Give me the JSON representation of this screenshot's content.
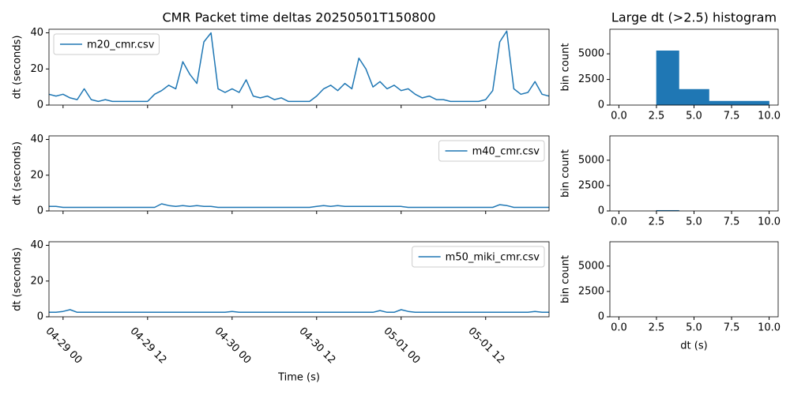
{
  "chart_data": [
    {
      "type": "line",
      "title": "CMR Packet time deltas 20250501T150800",
      "ylabel": "dt (seconds)",
      "legend": "upper left",
      "xticklabels": false,
      "x": [
        "04-28 22",
        "04-28 23",
        "04-29 00",
        "04-29 01",
        "04-29 02",
        "04-29 03",
        "04-29 04",
        "04-29 05",
        "04-29 06",
        "04-29 07",
        "04-29 08",
        "04-29 09",
        "04-29 10",
        "04-29 11",
        "04-29 12",
        "04-29 13",
        "04-29 14",
        "04-29 15",
        "04-29 16",
        "04-29 17",
        "04-29 18",
        "04-29 19",
        "04-29 20",
        "04-29 21",
        "04-29 22",
        "04-29 23",
        "04-30 00",
        "04-30 01",
        "04-30 02",
        "04-30 03",
        "04-30 04",
        "04-30 05",
        "04-30 06",
        "04-30 07",
        "04-30 08",
        "04-30 09",
        "04-30 10",
        "04-30 11",
        "04-30 12",
        "04-30 13",
        "04-30 14",
        "04-30 15",
        "04-30 16",
        "04-30 17",
        "04-30 18",
        "04-30 19",
        "04-30 20",
        "04-30 21",
        "04-30 22",
        "04-30 23",
        "05-01 00",
        "05-01 01",
        "05-01 02",
        "05-01 03",
        "05-01 04",
        "05-01 05",
        "05-01 06",
        "05-01 07",
        "05-01 08",
        "05-01 09",
        "05-01 10",
        "05-01 11",
        "05-01 12",
        "05-01 13",
        "05-01 14",
        "05-01 15",
        "05-01 16",
        "05-01 17",
        "05-01 18",
        "05-01 19",
        "05-01 20",
        "05-01 21"
      ],
      "series": [
        {
          "name": "m20_cmr.csv",
          "color": "#1f77b4",
          "values": [
            6,
            5,
            6,
            4,
            3,
            9,
            3,
            2,
            3,
            2,
            2,
            2,
            2,
            2,
            2,
            6,
            8,
            11,
            9,
            24,
            17,
            12,
            35,
            40,
            9,
            7,
            9,
            7,
            14,
            5,
            4,
            5,
            3,
            4,
            2,
            2,
            2,
            2,
            5,
            9,
            11,
            8,
            12,
            9,
            26,
            20,
            10,
            13,
            9,
            11,
            8,
            9,
            6,
            4,
            5,
            3,
            3,
            2,
            2,
            2,
            2,
            2,
            3,
            8,
            35,
            41,
            9,
            6,
            7,
            13,
            6,
            5
          ]
        }
      ],
      "xlim": [
        "04-28 22",
        "05-01 21"
      ],
      "xticks": [
        "04-29 00",
        "04-29 12",
        "04-30 00",
        "04-30 12",
        "05-01 00",
        "05-01 12"
      ],
      "ylim": [
        0,
        42
      ],
      "yticks": [
        0,
        20,
        40
      ]
    },
    {
      "type": "line",
      "ylabel": "dt (seconds)",
      "legend": "upper right",
      "xticklabels": false,
      "x": [
        "04-28 22",
        "04-28 23",
        "04-29 00",
        "04-29 01",
        "04-29 02",
        "04-29 03",
        "04-29 04",
        "04-29 05",
        "04-29 06",
        "04-29 07",
        "04-29 08",
        "04-29 09",
        "04-29 10",
        "04-29 11",
        "04-29 12",
        "04-29 13",
        "04-29 14",
        "04-29 15",
        "04-29 16",
        "04-29 17",
        "04-29 18",
        "04-29 19",
        "04-29 20",
        "04-29 21",
        "04-29 22",
        "04-29 23",
        "04-30 00",
        "04-30 01",
        "04-30 02",
        "04-30 03",
        "04-30 04",
        "04-30 05",
        "04-30 06",
        "04-30 07",
        "04-30 08",
        "04-30 09",
        "04-30 10",
        "04-30 11",
        "04-30 12",
        "04-30 13",
        "04-30 14",
        "04-30 15",
        "04-30 16",
        "04-30 17",
        "04-30 18",
        "04-30 19",
        "04-30 20",
        "04-30 21",
        "04-30 22",
        "04-30 23",
        "05-01 00",
        "05-01 01",
        "05-01 02",
        "05-01 03",
        "05-01 04",
        "05-01 05",
        "05-01 06",
        "05-01 07",
        "05-01 08",
        "05-01 09",
        "05-01 10",
        "05-01 11",
        "05-01 12",
        "05-01 13",
        "05-01 14",
        "05-01 15",
        "05-01 16",
        "05-01 17",
        "05-01 18",
        "05-01 19",
        "05-01 20",
        "05-01 21"
      ],
      "series": [
        {
          "name": "m40_cmr.csv",
          "color": "#1f77b4",
          "values": [
            2.5,
            2.5,
            2,
            2,
            2,
            2,
            2,
            2,
            2,
            2,
            2,
            2,
            2,
            2,
            2,
            2,
            4,
            3,
            2.5,
            3,
            2.5,
            3,
            2.5,
            2.5,
            2,
            2,
            2,
            2,
            2,
            2,
            2,
            2,
            2,
            2,
            2,
            2,
            2,
            2,
            2.5,
            3,
            2.5,
            3,
            2.5,
            2.5,
            2.5,
            2.5,
            2.5,
            2.5,
            2.5,
            2.5,
            2.5,
            2,
            2,
            2,
            2,
            2,
            2,
            2,
            2,
            2,
            2,
            2,
            2,
            2,
            3.5,
            3,
            2,
            2,
            2,
            2,
            2,
            2
          ]
        }
      ],
      "xlim": [
        "04-28 22",
        "05-01 21"
      ],
      "xticks": [
        "04-29 00",
        "04-29 12",
        "04-30 00",
        "04-30 12",
        "05-01 00",
        "05-01 12"
      ],
      "ylim": [
        0,
        42
      ],
      "yticks": [
        0,
        20,
        40
      ]
    },
    {
      "type": "line",
      "ylabel": "dt (seconds)",
      "xlabel": "Time (s)",
      "legend": "upper right",
      "xticklabels": true,
      "x": [
        "04-28 22",
        "04-28 23",
        "04-29 00",
        "04-29 01",
        "04-29 02",
        "04-29 03",
        "04-29 04",
        "04-29 05",
        "04-29 06",
        "04-29 07",
        "04-29 08",
        "04-29 09",
        "04-29 10",
        "04-29 11",
        "04-29 12",
        "04-29 13",
        "04-29 14",
        "04-29 15",
        "04-29 16",
        "04-29 17",
        "04-29 18",
        "04-29 19",
        "04-29 20",
        "04-29 21",
        "04-29 22",
        "04-29 23",
        "04-30 00",
        "04-30 01",
        "04-30 02",
        "04-30 03",
        "04-30 04",
        "04-30 05",
        "04-30 06",
        "04-30 07",
        "04-30 08",
        "04-30 09",
        "04-30 10",
        "04-30 11",
        "04-30 12",
        "04-30 13",
        "04-30 14",
        "04-30 15",
        "04-30 16",
        "04-30 17",
        "04-30 18",
        "04-30 19",
        "04-30 20",
        "04-30 21",
        "04-30 22",
        "04-30 23",
        "05-01 00",
        "05-01 01",
        "05-01 02",
        "05-01 03",
        "05-01 04",
        "05-01 05",
        "05-01 06",
        "05-01 07",
        "05-01 08",
        "05-01 09",
        "05-01 10",
        "05-01 11",
        "05-01 12",
        "05-01 13",
        "05-01 14",
        "05-01 15",
        "05-01 16",
        "05-01 17",
        "05-01 18",
        "05-01 19",
        "05-01 20",
        "05-01 21"
      ],
      "series": [
        {
          "name": "m50_miki_cmr.csv",
          "color": "#1f77b4",
          "values": [
            2.5,
            2.5,
            3,
            4,
            2.5,
            2.5,
            2.5,
            2.5,
            2.5,
            2.5,
            2.5,
            2.5,
            2.5,
            2.5,
            2.5,
            2.5,
            2.5,
            2.5,
            2.5,
            2.5,
            2.5,
            2.5,
            2.5,
            2.5,
            2.5,
            2.5,
            3,
            2.5,
            2.5,
            2.5,
            2.5,
            2.5,
            2.5,
            2.5,
            2.5,
            2.5,
            2.5,
            2.5,
            2.5,
            2.5,
            2.5,
            2.5,
            2.5,
            2.5,
            2.5,
            2.5,
            2.5,
            3.5,
            2.5,
            2.5,
            4,
            3,
            2.5,
            2.5,
            2.5,
            2.5,
            2.5,
            2.5,
            2.5,
            2.5,
            2.5,
            2.5,
            2.5,
            2.5,
            2.5,
            2.5,
            2.5,
            2.5,
            2.5,
            3,
            2.5,
            2.5
          ]
        }
      ],
      "xlim": [
        "04-28 22",
        "05-01 21"
      ],
      "xticks": [
        "04-29 00",
        "04-29 12",
        "04-30 00",
        "04-30 12",
        "05-01 00",
        "05-01 12"
      ],
      "ylim": [
        0,
        42
      ],
      "yticks": [
        0,
        20,
        40
      ]
    },
    {
      "type": "histogram",
      "title": "Large dt (>2.5) histogram",
      "ylabel": "bin count",
      "color": "#1f77b4",
      "bins": [
        0,
        2.5,
        4,
        6,
        10
      ],
      "counts": [
        0,
        5300,
        1540,
        385
      ],
      "xlim": [
        -0.6,
        10.6
      ],
      "xticks": [
        {
          "value": 0,
          "label": "0.0"
        },
        2.5,
        {
          "value": 5,
          "label": "5.0"
        },
        7.5,
        {
          "value": 10,
          "label": "10.0"
        }
      ],
      "ylim": [
        0,
        7400
      ],
      "yticks": [
        0,
        2500,
        5000
      ]
    },
    {
      "type": "histogram",
      "ylabel": "bin count",
      "color": "#1f77b4",
      "bins": [
        0,
        2.5,
        4,
        6,
        10
      ],
      "counts": [
        0,
        60,
        0,
        0
      ],
      "xlim": [
        -0.6,
        10.6
      ],
      "xticks": [
        {
          "value": 0,
          "label": "0.0"
        },
        2.5,
        {
          "value": 5,
          "label": "5.0"
        },
        7.5,
        {
          "value": 10,
          "label": "10.0"
        }
      ],
      "ylim": [
        0,
        7400
      ],
      "yticks": [
        0,
        2500,
        5000
      ]
    },
    {
      "type": "histogram",
      "ylabel": "bin count",
      "xlabel": "dt (s)",
      "color": "#1f77b4",
      "bins": [
        0,
        2.5,
        4,
        6,
        10
      ],
      "counts": [
        0,
        0,
        0,
        0
      ],
      "xlim": [
        -0.6,
        10.6
      ],
      "xticks": [
        {
          "value": 0,
          "label": "0.0"
        },
        2.5,
        {
          "value": 5,
          "label": "5.0"
        },
        7.5,
        {
          "value": 10,
          "label": "10.0"
        }
      ],
      "ylim": [
        0,
        7400
      ],
      "yticks": [
        0,
        2500,
        5000
      ]
    }
  ]
}
